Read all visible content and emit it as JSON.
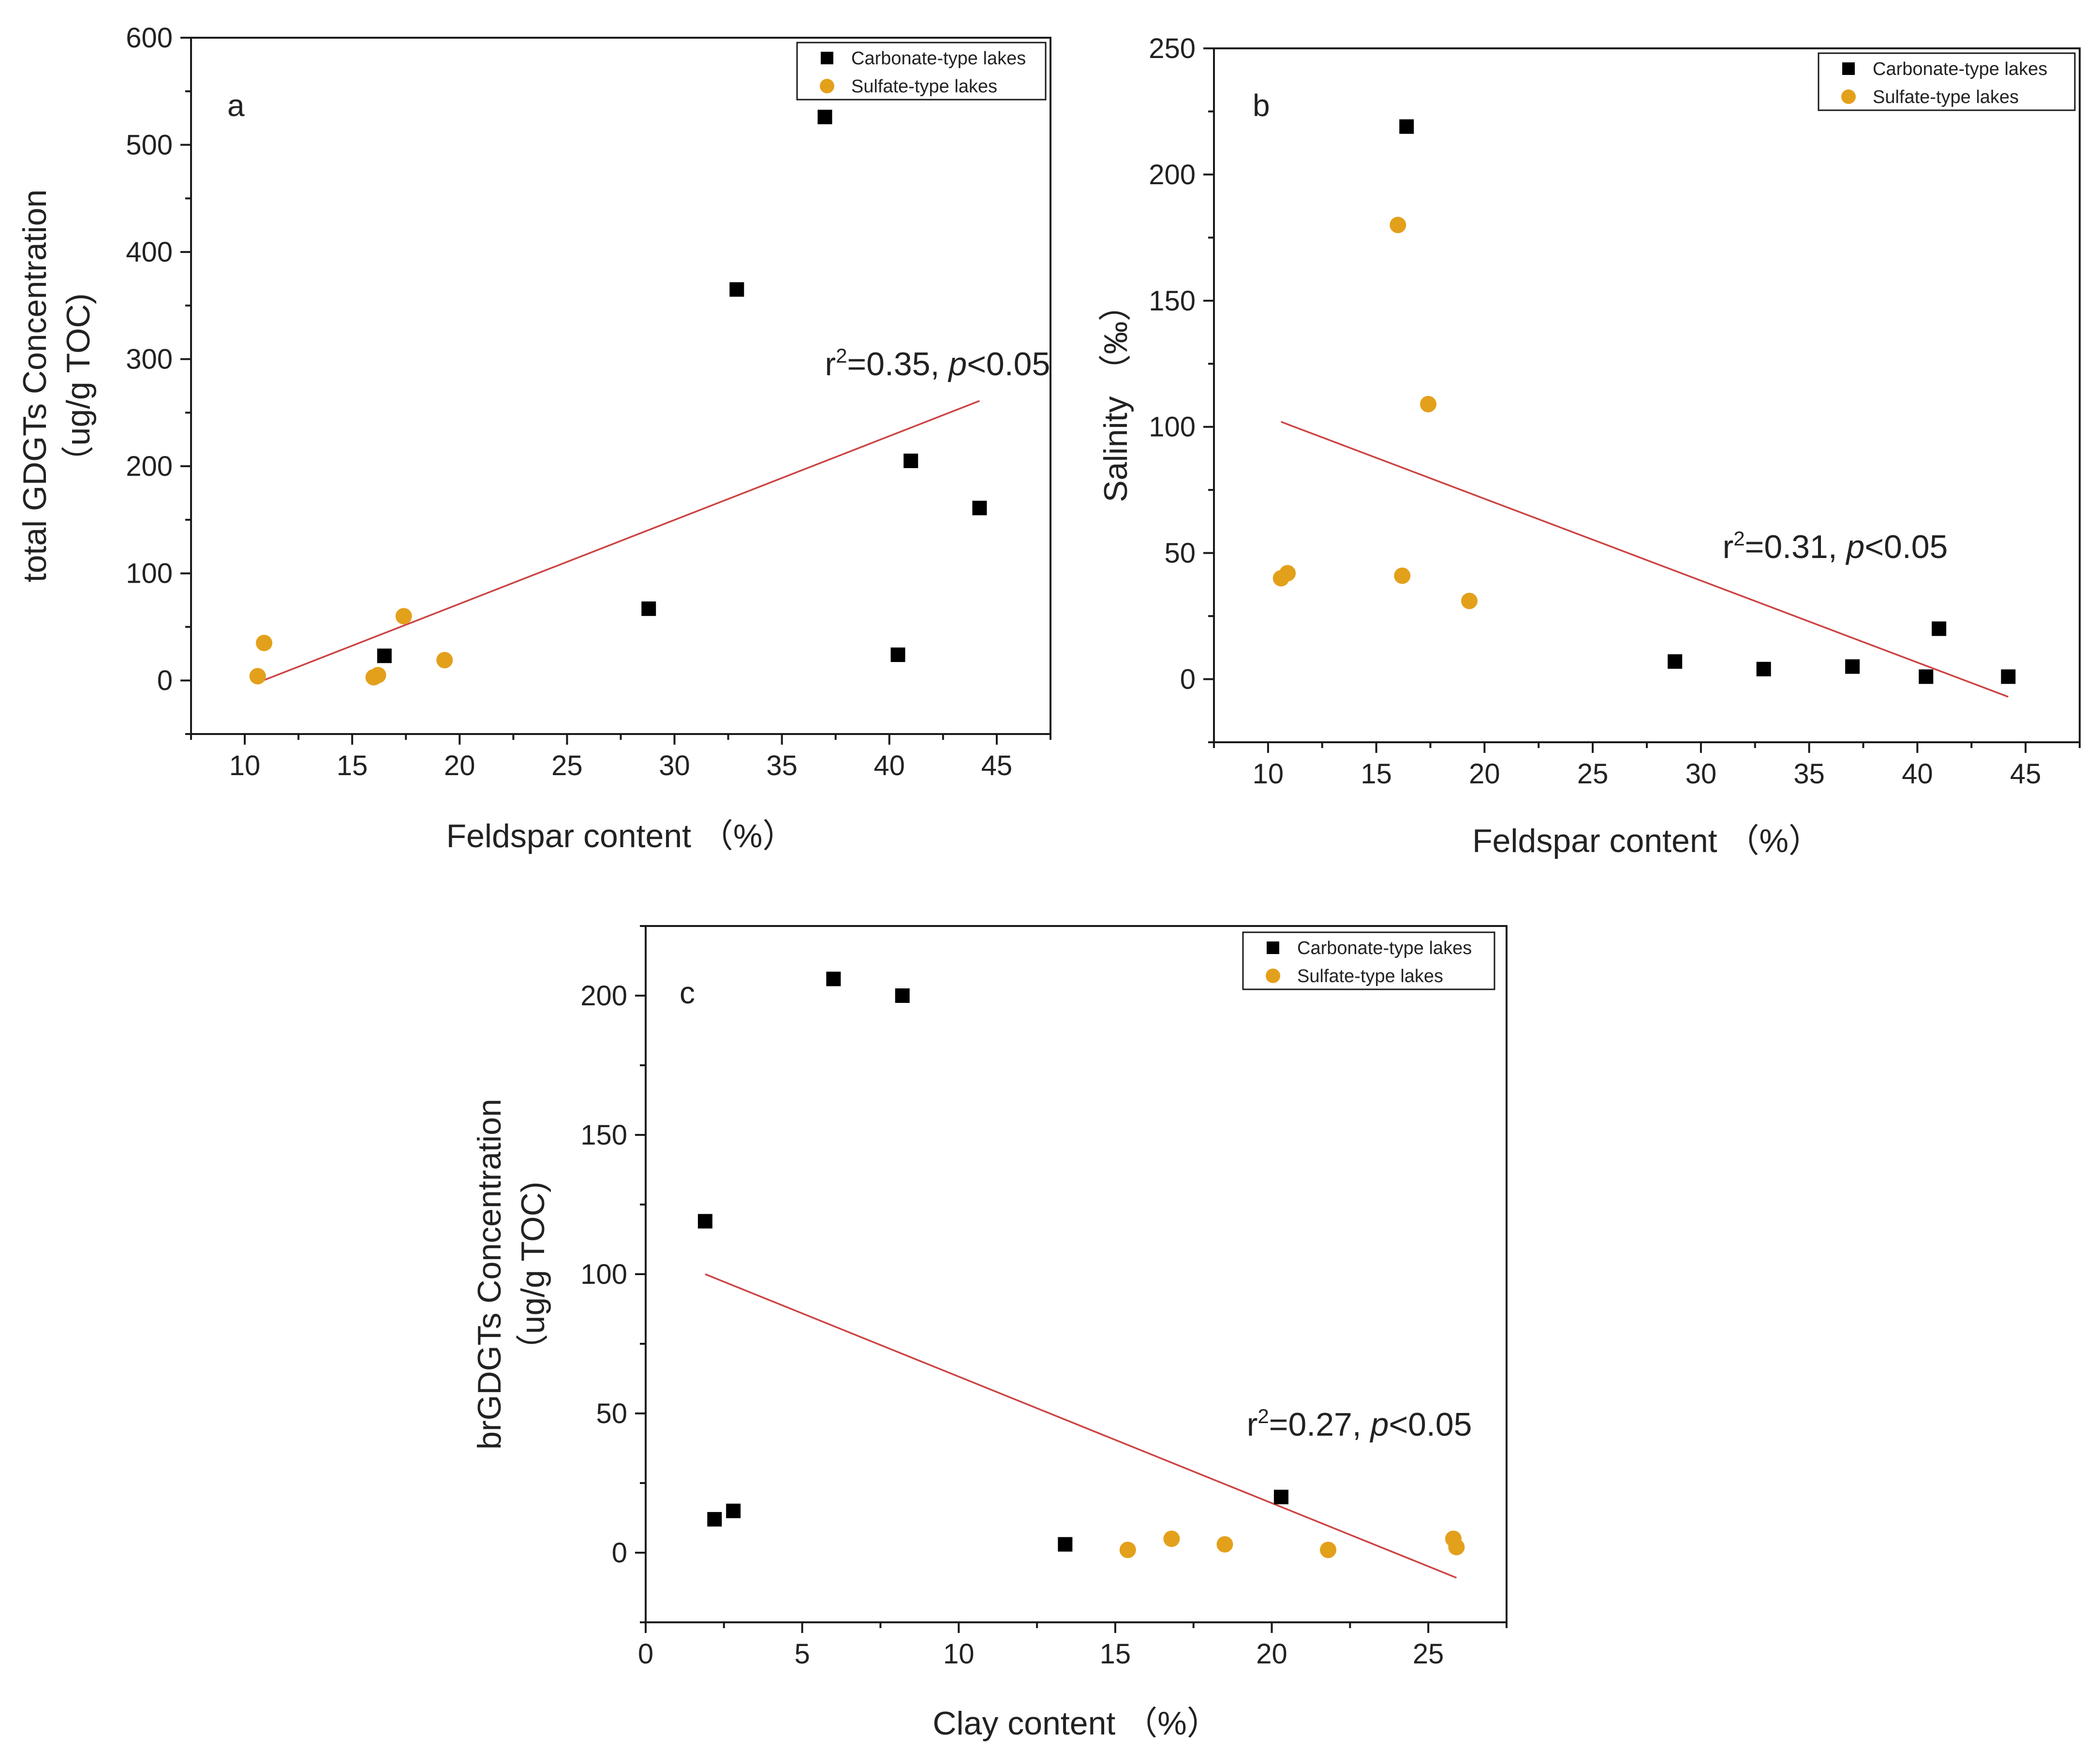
{
  "colors": {
    "carbonate": "#000000",
    "sulfate": "#e3a01b",
    "fit": "#cc4444",
    "axis": "#1a1a1a"
  },
  "chart_data": [
    {
      "type": "scatter",
      "panel_label": "a",
      "title": "",
      "xlabel": "Feldspar content （%）",
      "ylabel_line1": "total GDGTs Concentration",
      "ylabel_line2": "（ug/g TOC)",
      "xlim": [
        7.5,
        47.5
      ],
      "ylim": [
        -50,
        600
      ],
      "xticks": [
        10,
        15,
        20,
        25,
        30,
        35,
        40,
        45
      ],
      "yticks": [
        0,
        100,
        200,
        300,
        400,
        500,
        600
      ],
      "legend_position": "top-right",
      "series": [
        {
          "name": "Carbonate-type lakes",
          "marker": "square",
          "color": "#000000",
          "points": [
            [
              16.5,
              23
            ],
            [
              28.8,
              67
            ],
            [
              32.9,
              365
            ],
            [
              37.0,
              526
            ],
            [
              40.4,
              24
            ],
            [
              41.0,
              205
            ],
            [
              44.2,
              161
            ]
          ]
        },
        {
          "name": "Sulfate-type lakes",
          "marker": "circle",
          "color": "#e3a01b",
          "points": [
            [
              10.6,
              4
            ],
            [
              10.9,
              35
            ],
            [
              16.0,
              3
            ],
            [
              16.2,
              5
            ],
            [
              17.4,
              60
            ],
            [
              19.3,
              19
            ]
          ]
        }
      ],
      "fit_line": [
        [
          10.6,
          -2
        ],
        [
          44.2,
          261
        ]
      ],
      "annotation": {
        "r2": "r",
        "sup": "2",
        "value": "=0.35, ",
        "p": "p",
        "p_rest": "<0.05",
        "anchor": [
          37,
          285
        ]
      }
    },
    {
      "type": "scatter",
      "panel_label": "b",
      "title": "",
      "xlabel": "Feldspar content （%）",
      "ylabel_line1": "Salinity （‰）",
      "ylabel_line2": "",
      "xlim": [
        7.5,
        47.5
      ],
      "ylim": [
        -25,
        250
      ],
      "xticks": [
        10,
        15,
        20,
        25,
        30,
        35,
        40,
        45
      ],
      "yticks": [
        0,
        50,
        100,
        150,
        200,
        250
      ],
      "legend_position": "top-right",
      "series": [
        {
          "name": "Carbonate-type lakes",
          "marker": "square",
          "color": "#000000",
          "points": [
            [
              16.4,
              219
            ],
            [
              28.8,
              7
            ],
            [
              32.9,
              4
            ],
            [
              37.0,
              5
            ],
            [
              40.4,
              1
            ],
            [
              41.0,
              20
            ],
            [
              44.2,
              1
            ]
          ]
        },
        {
          "name": "Sulfate-type lakes",
          "marker": "circle",
          "color": "#e3a01b",
          "points": [
            [
              10.6,
              40
            ],
            [
              10.9,
              42
            ],
            [
              16.0,
              180
            ],
            [
              16.2,
              41
            ],
            [
              17.4,
              109
            ],
            [
              19.3,
              31
            ]
          ]
        }
      ],
      "fit_line": [
        [
          10.6,
          102
        ],
        [
          44.2,
          -7
        ]
      ],
      "annotation": {
        "r2": "r",
        "sup": "2",
        "value": "=0.31, ",
        "p": "p",
        "p_rest": "<0.05",
        "anchor": [
          31,
          48
        ]
      }
    },
    {
      "type": "scatter",
      "panel_label": "c",
      "title": "",
      "xlabel": "Clay content （%）",
      "ylabel_line1": "brGDGTs Concentration",
      "ylabel_line2": "（ug/g TOC)",
      "xlim": [
        0,
        27.5
      ],
      "ylim": [
        -25,
        225
      ],
      "xticks": [
        0,
        5,
        10,
        15,
        20,
        25
      ],
      "yticks": [
        0,
        50,
        100,
        150,
        200
      ],
      "legend_position": "top-right",
      "series": [
        {
          "name": "Carbonate-type lakes",
          "marker": "square",
          "color": "#000000",
          "points": [
            [
              1.9,
              119
            ],
            [
              2.2,
              12
            ],
            [
              2.8,
              15
            ],
            [
              6.0,
              206
            ],
            [
              8.2,
              200
            ],
            [
              13.4,
              3
            ],
            [
              20.3,
              20
            ]
          ]
        },
        {
          "name": "Sulfate-type lakes",
          "marker": "circle",
          "color": "#e3a01b",
          "points": [
            [
              15.4,
              1
            ],
            [
              16.8,
              5
            ],
            [
              18.5,
              3
            ],
            [
              21.8,
              1
            ],
            [
              25.8,
              5
            ],
            [
              25.9,
              2
            ]
          ]
        }
      ],
      "fit_line": [
        [
          1.9,
          100
        ],
        [
          25.9,
          -9
        ]
      ],
      "annotation": {
        "r2": "r",
        "sup": "2",
        "value": "=0.27, ",
        "p": "p",
        "p_rest": "<0.05",
        "anchor": [
          19.2,
          42
        ]
      }
    }
  ]
}
